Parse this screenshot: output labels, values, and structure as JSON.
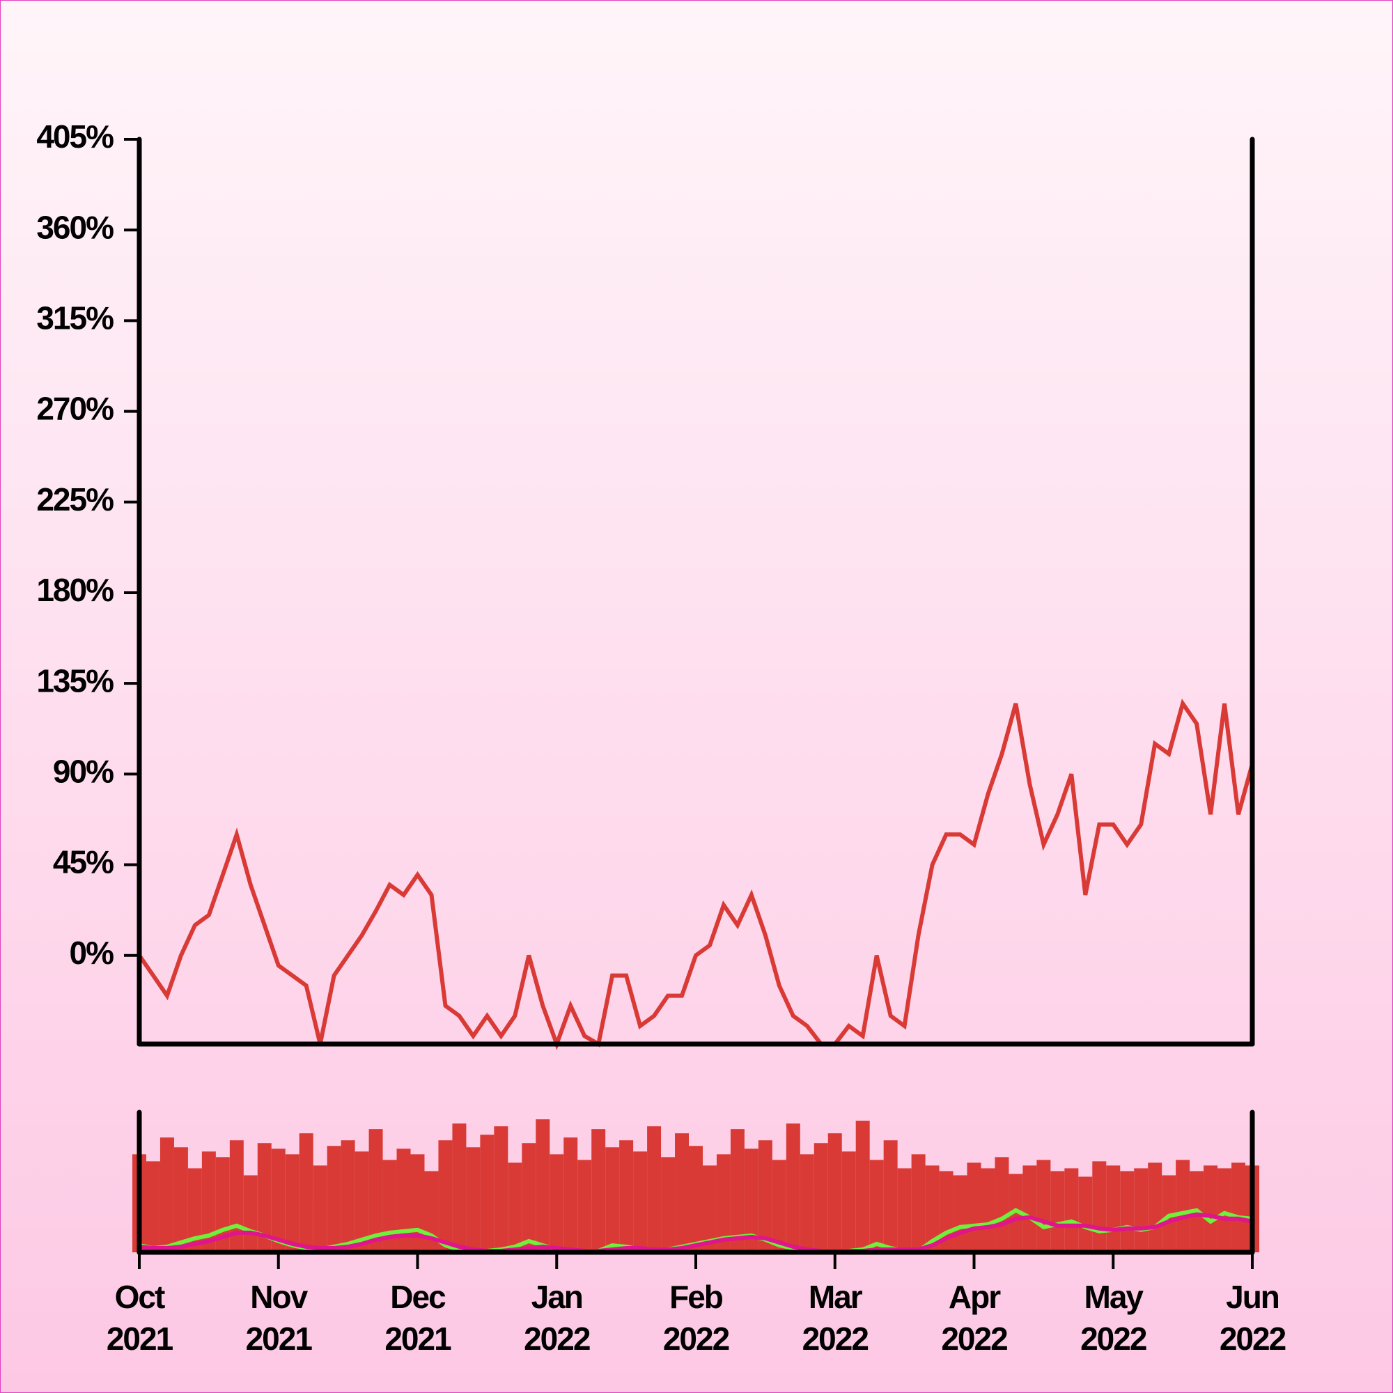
{
  "chart_data": [
    {
      "type": "line",
      "x": [
        0,
        0.1,
        0.2,
        0.3,
        0.4,
        0.5,
        0.6,
        0.7,
        0.8,
        0.9,
        1,
        1.1,
        1.2,
        1.3,
        1.4,
        1.5,
        1.6,
        1.7,
        1.8,
        1.9,
        2,
        2.1,
        2.2,
        2.3,
        2.4,
        2.5,
        2.6,
        2.7,
        2.8,
        2.9,
        3,
        3.1,
        3.2,
        3.3,
        3.4,
        3.5,
        3.6,
        3.7,
        3.8,
        3.9,
        4,
        4.1,
        4.2,
        4.3,
        4.4,
        4.5,
        4.6,
        4.7,
        4.8,
        4.9,
        5,
        5.1,
        5.2,
        5.3,
        5.4,
        5.5,
        5.6,
        5.7,
        5.8,
        5.9,
        6,
        6.1,
        6.2,
        6.3,
        6.4,
        6.5,
        6.6,
        6.7,
        6.8,
        6.9,
        7,
        7.1,
        7.2,
        7.3,
        7.4,
        7.5,
        7.6,
        7.7,
        7.8,
        7.9,
        8
      ],
      "series": [
        {
          "color": "#d93a35",
          "values": [
            0,
            -10,
            -20,
            0,
            15,
            20,
            40,
            60,
            35,
            15,
            -5,
            -10,
            -15,
            -44,
            -10,
            0,
            10,
            22,
            35,
            30,
            40,
            30,
            -25,
            -30,
            -40,
            -30,
            -40,
            -30,
            0,
            -25,
            -44,
            -25,
            -40,
            -44,
            -10,
            -10,
            -35,
            -30,
            -20,
            -20,
            0,
            5,
            25,
            15,
            30,
            10,
            -15,
            -30,
            -35,
            -44,
            -44,
            -35,
            -40,
            0,
            -30,
            -35,
            10,
            45,
            60,
            60,
            55,
            80,
            100,
            125,
            85,
            55,
            70,
            90,
            30,
            65,
            65,
            55,
            65,
            105,
            100,
            125,
            115,
            70,
            125,
            70,
            95
          ]
        }
      ],
      "xlim": [
        0,
        8
      ],
      "ylim": [
        -44,
        405
      ],
      "yticks": [
        {
          "value": 0,
          "label": "0%"
        },
        {
          "value": 45,
          "label": "45%"
        },
        {
          "value": 90,
          "label": "90%"
        },
        {
          "value": 135,
          "label": "135%"
        },
        {
          "value": 180,
          "label": "180%"
        },
        {
          "value": 225,
          "label": "225%"
        },
        {
          "value": 270,
          "label": "270%"
        },
        {
          "value": 315,
          "label": "315%"
        },
        {
          "value": 360,
          "label": "360%"
        },
        {
          "value": 405,
          "label": "405%"
        }
      ]
    },
    {
      "type": "bar",
      "x": [
        0,
        0.1,
        0.2,
        0.3,
        0.4,
        0.5,
        0.6,
        0.7,
        0.8,
        0.9,
        1,
        1.1,
        1.2,
        1.3,
        1.4,
        1.5,
        1.6,
        1.7,
        1.8,
        1.9,
        2,
        2.1,
        2.2,
        2.3,
        2.4,
        2.5,
        2.6,
        2.7,
        2.8,
        2.9,
        3,
        3.1,
        3.2,
        3.3,
        3.4,
        3.5,
        3.6,
        3.7,
        3.8,
        3.9,
        4,
        4.1,
        4.2,
        4.3,
        4.4,
        4.5,
        4.6,
        4.7,
        4.8,
        4.9,
        5,
        5.1,
        5.2,
        5.3,
        5.4,
        5.5,
        5.6,
        5.7,
        5.8,
        5.9,
        6,
        6.1,
        6.2,
        6.3,
        6.4,
        6.5,
        6.6,
        6.7,
        6.8,
        6.9,
        7,
        7.1,
        7.2,
        7.3,
        7.4,
        7.5,
        7.6,
        7.7,
        7.8,
        7.9,
        8
      ],
      "series": [
        {
          "color": "#d93a35",
          "values": [
            70,
            65,
            82,
            75,
            60,
            72,
            68,
            80,
            55,
            78,
            74,
            70,
            85,
            62,
            76,
            80,
            72,
            88,
            66,
            74,
            70,
            58,
            80,
            92,
            75,
            84,
            90,
            64,
            78,
            95,
            70,
            82,
            66,
            88,
            75,
            80,
            72,
            90,
            68,
            85,
            76,
            62,
            70,
            88,
            74,
            80,
            66,
            92,
            70,
            78,
            85,
            72,
            94,
            66,
            80,
            60,
            70,
            62,
            58,
            55,
            64,
            60,
            68,
            56,
            62,
            66,
            58,
            60,
            54,
            65,
            62,
            58,
            60,
            64,
            55,
            66,
            58,
            62,
            60,
            64,
            62
          ]
        },
        {
          "type": "line",
          "color": "#6ef03c",
          "values": [
            5,
            3,
            4,
            7,
            10,
            12,
            16,
            19,
            15,
            12,
            8,
            5,
            3,
            2,
            4,
            6,
            9,
            12,
            14,
            15,
            16,
            12,
            5,
            2,
            1,
            1,
            2,
            4,
            8,
            5,
            2,
            1,
            1,
            1,
            5,
            4,
            2,
            1,
            2,
            4,
            6,
            8,
            10,
            11,
            12,
            9,
            5,
            3,
            1,
            1,
            1,
            1,
            2,
            6,
            3,
            1,
            1,
            8,
            14,
            18,
            19,
            20,
            24,
            30,
            25,
            18,
            20,
            22,
            18,
            15,
            16,
            18,
            16,
            18,
            26,
            28,
            30,
            22,
            28,
            25,
            24
          ]
        },
        {
          "type": "line",
          "color": "#e0148c",
          "values": [
            4,
            3,
            3,
            4,
            6,
            8,
            11,
            14,
            14,
            12,
            9,
            6,
            4,
            3,
            3,
            4,
            6,
            9,
            11,
            12,
            12,
            10,
            7,
            4,
            2,
            1,
            1,
            2,
            3,
            4,
            3,
            2,
            1,
            1,
            2,
            3,
            3,
            2,
            2,
            3,
            5,
            7,
            9,
            10,
            11,
            10,
            7,
            4,
            2,
            1,
            1,
            1,
            1,
            2,
            2,
            2,
            2,
            5,
            10,
            14,
            17,
            18,
            20,
            24,
            25,
            22,
            19,
            19,
            19,
            17,
            16,
            17,
            17,
            18,
            22,
            25,
            27,
            26,
            24,
            24,
            22
          ]
        }
      ],
      "xlim": [
        0,
        8
      ],
      "ylim": [
        0,
        100
      ],
      "xticks": [
        {
          "value": 0,
          "label": [
            "Oct",
            "2021"
          ]
        },
        {
          "value": 1,
          "label": [
            "Nov",
            "2021"
          ]
        },
        {
          "value": 2,
          "label": [
            "Dec",
            "2021"
          ]
        },
        {
          "value": 3,
          "label": [
            "Jan",
            "2022"
          ]
        },
        {
          "value": 4,
          "label": [
            "Feb",
            "2022"
          ]
        },
        {
          "value": 5,
          "label": [
            "Mar",
            "2022"
          ]
        },
        {
          "value": 6,
          "label": [
            "Apr",
            "2022"
          ]
        },
        {
          "value": 7,
          "label": [
            "May",
            "2022"
          ]
        },
        {
          "value": 8,
          "label": [
            "Jun",
            "2022"
          ]
        }
      ]
    }
  ]
}
